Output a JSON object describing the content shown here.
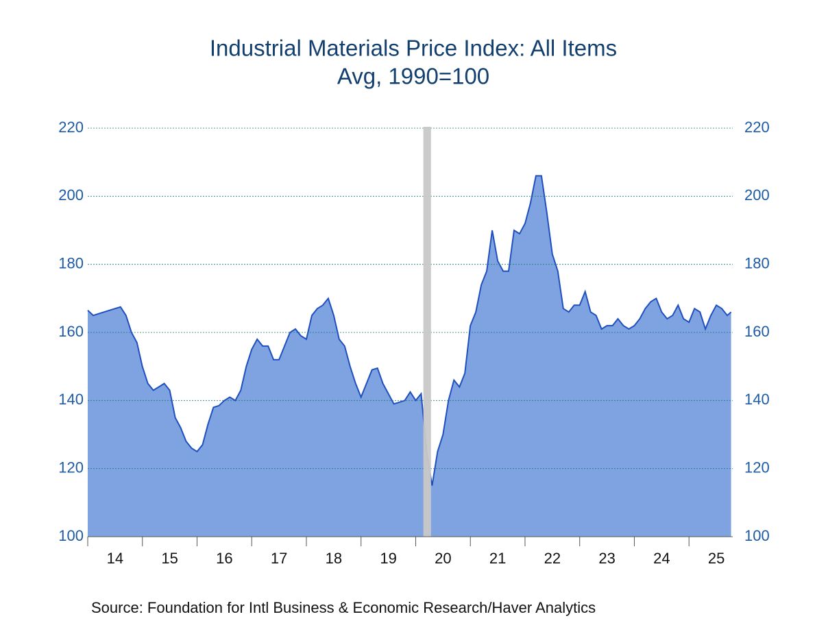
{
  "chart_data": {
    "type": "area",
    "title": "Industrial Materials Price Index: All Items",
    "subtitle": "Avg, 1990=100",
    "source": "Source:  Foundation for Intl Business & Economic Research/Haver Analytics",
    "x": [
      14.0,
      14.1,
      14.2,
      14.3,
      14.4,
      14.5,
      14.6,
      14.7,
      14.8,
      14.9,
      15.0,
      15.1,
      15.2,
      15.3,
      15.4,
      15.5,
      15.6,
      15.7,
      15.8,
      15.9,
      16.0,
      16.1,
      16.2,
      16.3,
      16.4,
      16.5,
      16.6,
      16.7,
      16.8,
      16.9,
      17.0,
      17.1,
      17.2,
      17.3,
      17.4,
      17.5,
      17.6,
      17.7,
      17.8,
      17.9,
      18.0,
      18.1,
      18.2,
      18.3,
      18.4,
      18.5,
      18.6,
      18.7,
      18.8,
      18.9,
      19.0,
      19.1,
      19.2,
      19.3,
      19.4,
      19.5,
      19.6,
      19.7,
      19.8,
      19.9,
      20.0,
      20.1,
      20.2,
      20.3,
      20.4,
      20.5,
      20.6,
      20.7,
      20.8,
      20.9,
      21.0,
      21.1,
      21.2,
      21.3,
      21.4,
      21.5,
      21.6,
      21.7,
      21.8,
      21.9,
      22.0,
      22.1,
      22.2,
      22.3,
      22.4,
      22.5,
      22.6,
      22.7,
      22.8,
      22.9,
      23.0,
      23.1,
      23.2,
      23.3,
      23.4,
      23.5,
      23.6,
      23.7,
      23.8,
      23.9,
      24.0,
      24.1,
      24.2,
      24.3,
      24.4,
      24.5,
      24.6,
      24.7,
      24.8,
      24.9,
      25.0,
      25.1,
      25.2,
      25.3,
      25.4,
      25.5,
      25.6,
      25.7,
      25.77
    ],
    "series": [
      {
        "name": "Industrial Materials Price Index: All Items",
        "color": "#1f4fbf",
        "fill": "#7fa3e0",
        "values": [
          166.5,
          165,
          165.5,
          166,
          166.5,
          167,
          167.5,
          165,
          160,
          157,
          150,
          145,
          143,
          144,
          145,
          143,
          135,
          132,
          128,
          126,
          125,
          127,
          133,
          138,
          138.5,
          140,
          141,
          140,
          143,
          150,
          155,
          158,
          156,
          156,
          152,
          152,
          156,
          160,
          161,
          159,
          158,
          165,
          167,
          168,
          170,
          165,
          158,
          156,
          150,
          145,
          141,
          145,
          149,
          149.5,
          145,
          142,
          139,
          139.5,
          140,
          142.5,
          140,
          142,
          125,
          115,
          125,
          130,
          140,
          146,
          144,
          148,
          162,
          166,
          174,
          178,
          190,
          181,
          178,
          178,
          190,
          189,
          192,
          198,
          206,
          206,
          195,
          183,
          178,
          167,
          166,
          168,
          168,
          172,
          166,
          165,
          161,
          162,
          162,
          164,
          162,
          161,
          162,
          164,
          167,
          169,
          170,
          166,
          164,
          165,
          168,
          164,
          163,
          167,
          166,
          161,
          165,
          168,
          167,
          165,
          166
        ]
      }
    ],
    "shaded_ranges": [
      [
        20.14,
        20.28
      ]
    ],
    "xlim": [
      14,
      25.8
    ],
    "xticks": [
      14,
      15,
      16,
      17,
      18,
      19,
      20,
      21,
      22,
      23,
      24,
      25
    ],
    "ylim": [
      100,
      220
    ],
    "yticks": [
      100,
      120,
      140,
      160,
      180,
      200,
      220
    ],
    "grid": true
  }
}
